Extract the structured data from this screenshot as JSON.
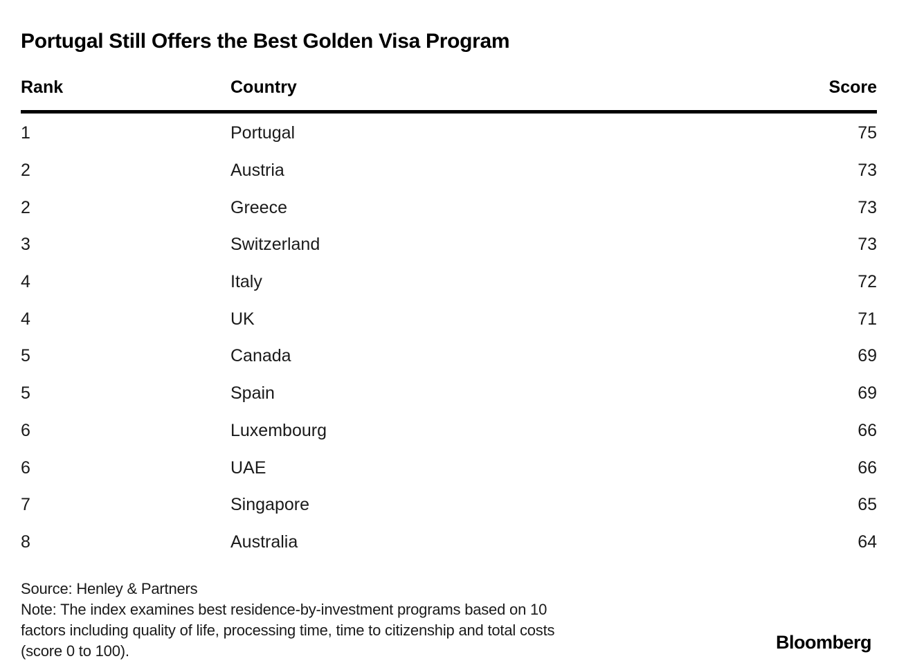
{
  "title": "Portugal Still Offers the Best Golden Visa Program",
  "table": {
    "columns": [
      "Rank",
      "Country",
      "Score"
    ],
    "rows": [
      {
        "rank": "1",
        "country": "Portugal",
        "score": "75"
      },
      {
        "rank": "2",
        "country": "Austria",
        "score": "73"
      },
      {
        "rank": "2",
        "country": "Greece",
        "score": "73"
      },
      {
        "rank": "3",
        "country": "Switzerland",
        "score": "73"
      },
      {
        "rank": "4",
        "country": "Italy",
        "score": "72"
      },
      {
        "rank": "4",
        "country": "UK",
        "score": "71"
      },
      {
        "rank": "5",
        "country": "Canada",
        "score": "69"
      },
      {
        "rank": "5",
        "country": "Spain",
        "score": "69"
      },
      {
        "rank": "6",
        "country": "Luxembourg",
        "score": "66"
      },
      {
        "rank": "6",
        "country": "UAE",
        "score": "66"
      },
      {
        "rank": "7",
        "country": "Singapore",
        "score": "65"
      },
      {
        "rank": "8",
        "country": "Australia",
        "score": "64"
      }
    ]
  },
  "footer": {
    "source": "Source: Henley & Partners",
    "note_lines": [
      "Note: The index examines best residence-by-investment programs based on 10",
      "factors including quality of life, processing time, time to citizenship and total costs",
      "(score 0 to 100)."
    ],
    "brand": "Bloomberg"
  },
  "colors": {
    "background": "#ffffff",
    "title_text": "#000000",
    "body_text": "#1a1a1a",
    "rule": "#000000"
  },
  "chart_data": {
    "type": "table",
    "title": "Portugal Still Offers the Best Golden Visa Program",
    "columns": [
      "Rank",
      "Country",
      "Score"
    ],
    "rows": [
      [
        1,
        "Portugal",
        75
      ],
      [
        2,
        "Austria",
        73
      ],
      [
        2,
        "Greece",
        73
      ],
      [
        3,
        "Switzerland",
        73
      ],
      [
        4,
        "Italy",
        72
      ],
      [
        4,
        "UK",
        71
      ],
      [
        5,
        "Canada",
        69
      ],
      [
        5,
        "Spain",
        69
      ],
      [
        6,
        "Luxembourg",
        66
      ],
      [
        6,
        "UAE",
        66
      ],
      [
        7,
        "Singapore",
        65
      ],
      [
        8,
        "Australia",
        64
      ]
    ],
    "score_range": [
      0,
      100
    ],
    "source": "Henley & Partners",
    "note": "The index examines best residence-by-investment programs based on 10 factors including quality of life, processing time, time to citizenship and total costs (score 0 to 100)."
  }
}
